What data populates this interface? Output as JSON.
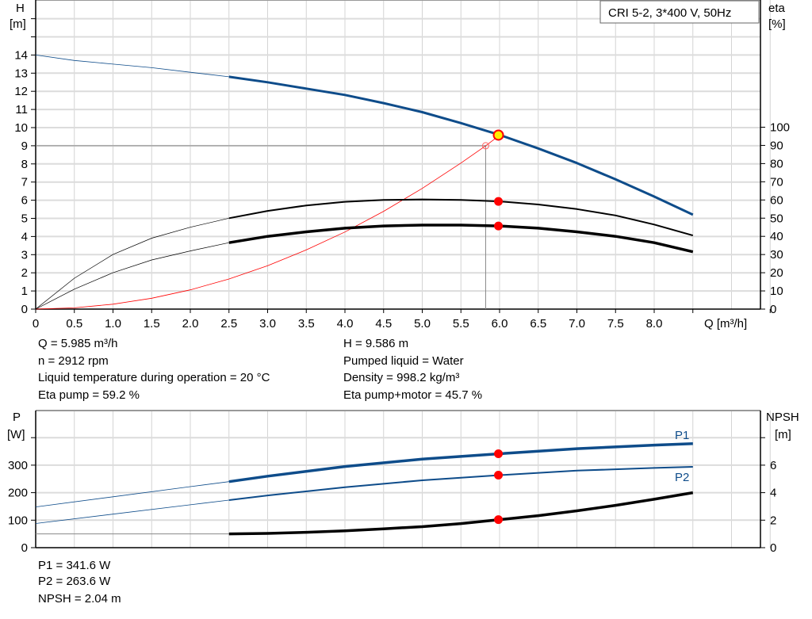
{
  "chart_data": [
    {
      "type": "line",
      "title_box": "CRI 5-2, 3*400 V, 50Hz",
      "xlabel": "Q [m³/h]",
      "ylabel_left": [
        "H",
        "[m]"
      ],
      "ylabel_right": [
        "eta",
        "[%]"
      ],
      "x_ticks": [
        "0",
        "0.5",
        "1.0",
        "1.5",
        "2.0",
        "2.5",
        "3.0",
        "3.5",
        "4.0",
        "4.5",
        "5.0",
        "5.5",
        "6.0",
        "6.5",
        "7.0",
        "7.5",
        "8.0"
      ],
      "y_left_ticks": [
        "0",
        "1",
        "2",
        "3",
        "4",
        "5",
        "6",
        "7",
        "8",
        "9",
        "10",
        "11",
        "12",
        "13",
        "14"
      ],
      "y_right_ticks": [
        "0",
        "10",
        "20",
        "30",
        "40",
        "50",
        "60",
        "70",
        "80",
        "90",
        "100"
      ],
      "xlim": [
        0,
        9.5
      ],
      "ylim_left": [
        0,
        17
      ],
      "grid": true,
      "series": [
        {
          "axis": "left",
          "color": "#0e4c8a",
          "x": [
            0,
            0.5,
            1,
            1.5,
            2,
            2.5,
            3,
            3.5,
            4,
            4.5,
            5,
            5.5,
            6,
            6.5,
            7,
            7.5,
            8,
            8.5
          ],
          "y": [
            14.0,
            13.7,
            13.5,
            13.3,
            13.05,
            12.8,
            12.5,
            12.15,
            11.8,
            11.35,
            10.85,
            10.25,
            9.6,
            8.85,
            8.05,
            7.15,
            6.2,
            5.2
          ]
        },
        {
          "axis": "right",
          "color": "#000000",
          "x": [
            0,
            0.5,
            1,
            1.5,
            2,
            2.5,
            3,
            3.5,
            4,
            4.5,
            5,
            5.5,
            6,
            6.5,
            7,
            7.5,
            8,
            8.5
          ],
          "y": [
            0,
            17,
            30,
            39,
            45,
            50,
            54,
            57,
            59,
            60,
            60.3,
            60,
            59.2,
            57.5,
            55,
            51.5,
            46.5,
            40.5
          ]
        },
        {
          "axis": "right",
          "color": "#000000",
          "x": [
            0,
            0.5,
            1,
            1.5,
            2,
            2.5,
            3,
            3.5,
            4,
            4.5,
            5,
            5.5,
            6,
            6.5,
            7,
            7.5,
            8,
            8.5
          ],
          "y": [
            0,
            11,
            20,
            27,
            32,
            36.5,
            40,
            42.5,
            44.5,
            45.7,
            46.2,
            46.2,
            45.7,
            44.5,
            42.5,
            40,
            36.5,
            31.5
          ]
        },
        {
          "axis": "left",
          "color": "#ff0000",
          "system_curve": true,
          "x": [
            0,
            0.5,
            1,
            1.5,
            2,
            2.5,
            3,
            3.5,
            4,
            4.5,
            5,
            5.5,
            5.82,
            5.985
          ],
          "y": [
            0,
            0.07,
            0.27,
            0.6,
            1.06,
            1.66,
            2.39,
            3.26,
            4.25,
            5.39,
            6.65,
            8.05,
            9.0,
            9.53
          ]
        }
      ],
      "operating_point": {
        "Q": 5.985,
        "H": 9.586,
        "eta_pump": 59.2,
        "eta_pump_motor": 45.7
      },
      "requested_point": {
        "Q": 5.82,
        "H": 9.0
      }
    },
    {
      "type": "line",
      "ylabel_left": [
        "P",
        "[W]"
      ],
      "ylabel_right": [
        "NPSH",
        "[m]"
      ],
      "y_left_ticks": [
        "0",
        "100",
        "200",
        "300"
      ],
      "y_right_ticks": [
        "0",
        "2",
        "4",
        "6"
      ],
      "xlim": [
        0,
        9.5
      ],
      "ylim_left": [
        0,
        500
      ],
      "ylim_right": [
        0,
        10
      ],
      "grid": true,
      "series": [
        {
          "name": "P1",
          "axis": "left",
          "color": "#0e4c8a",
          "x": [
            0,
            1,
            2,
            2.5,
            3,
            4,
            5,
            6,
            7,
            8,
            8.5
          ],
          "y": [
            148,
            185,
            222,
            240,
            260,
            295,
            322,
            341.6,
            360,
            373,
            378
          ]
        },
        {
          "name": "P2",
          "axis": "left",
          "color": "#0e4c8a",
          "x": [
            0,
            1,
            2,
            2.5,
            3,
            4,
            5,
            6,
            7,
            8,
            8.5
          ],
          "y": [
            88,
            122,
            156,
            173,
            190,
            220,
            245,
            263.6,
            280,
            290,
            294
          ]
        },
        {
          "axis": "right",
          "color": "#000000",
          "x": [
            0,
            2.5,
            3,
            3.5,
            4,
            4.5,
            5,
            5.5,
            6,
            6.5,
            7,
            7.5,
            8,
            8.5
          ],
          "y": [
            1.0,
            1.0,
            1.04,
            1.12,
            1.23,
            1.37,
            1.53,
            1.75,
            2.04,
            2.33,
            2.68,
            3.08,
            3.52,
            4.0
          ]
        }
      ],
      "operating_point": {
        "Q": 5.985,
        "P1": 341.6,
        "P2": 263.6,
        "NPSH": 2.04
      }
    }
  ],
  "info_top": {
    "q": "Q = 5.985 m³/h",
    "n": "n = 2912 rpm",
    "temp": "Liquid temperature during operation = 20 °C",
    "eta_pump": "Eta pump = 59.2 %",
    "h": "H = 9.586 m",
    "liquid": "Pumped liquid = Water",
    "density": "Density = 998.2 kg/m³",
    "eta_pm": "Eta pump+motor = 45.7 %"
  },
  "info_bottom": {
    "p1": "P1 = 341.6 W",
    "p2": "P2 = 263.6 W",
    "npsh": "NPSH = 2.04 m"
  }
}
